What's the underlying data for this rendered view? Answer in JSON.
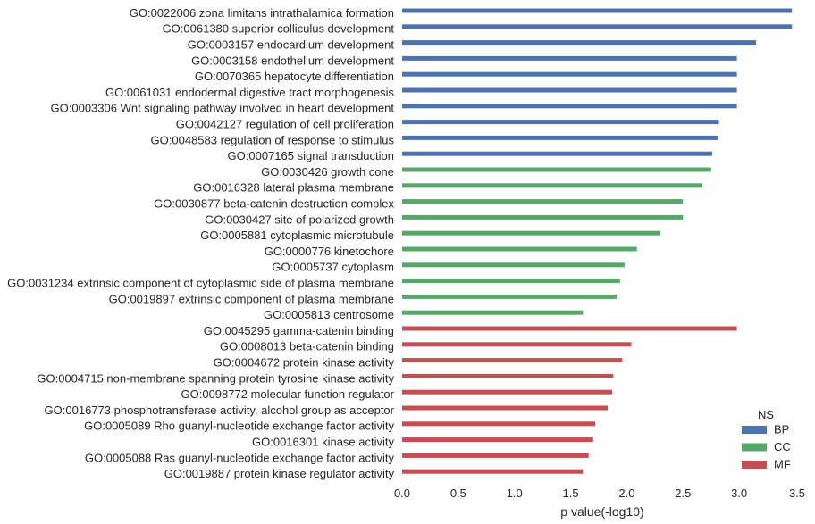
{
  "chart_data": {
    "type": "bar",
    "orientation": "horizontal",
    "title": "",
    "xlabel": "p value(-log10)",
    "ylabel": "",
    "xlim": [
      0,
      3.5
    ],
    "xticks": [
      "0.0",
      "0.5",
      "1.0",
      "1.5",
      "2.0",
      "2.5",
      "3.0",
      "3.5"
    ],
    "grid": false,
    "legend": {
      "title": "NS",
      "placement": "bottom-right",
      "entries": [
        {
          "name": "BP",
          "color": "#4c72b0"
        },
        {
          "name": "CC",
          "color": "#55a868"
        },
        {
          "name": "MF",
          "color": "#c44e52"
        }
      ]
    },
    "categories": [
      "GO:0022006 zona limitans intrathalamica formation",
      "GO:0061380 superior colliculus development",
      "GO:0003157 endocardium development",
      "GO:0003158 endothelium development",
      "GO:0070365 hepatocyte differentiation",
      "GO:0061031 endodermal digestive tract morphogenesis",
      "GO:0003306 Wnt signaling pathway involved in heart development",
      "GO:0042127 regulation of cell proliferation",
      "GO:0048583 regulation of response to stimulus",
      "GO:0007165 signal transduction",
      "GO:0030426 growth cone",
      "GO:0016328 lateral plasma membrane",
      "GO:0030877 beta-catenin destruction complex",
      "GO:0030427 site of polarized growth",
      "GO:0005881 cytoplasmic microtubule",
      "GO:0000776 kinetochore",
      "GO:0005737 cytoplasm",
      "GO:0031234 extrinsic component of cytoplasmic side of plasma membrane",
      "GO:0019897 extrinsic component of plasma membrane",
      "GO:0005813 centrosome",
      "GO:0045295 gamma-catenin binding",
      "GO:0008013 beta-catenin binding",
      "GO:0004672 protein kinase activity",
      "GO:0004715 non-membrane spanning protein tyrosine kinase activity",
      "GO:0098772 molecular function regulator",
      "GO:0016773 phosphotransferase activity, alcohol group as acceptor",
      "GO:0005089 Rho guanyl-nucleotide exchange factor activity",
      "GO:0016301 kinase activity",
      "GO:0005088 Ras guanyl-nucleotide exchange factor activity",
      "GO:0019887 protein kinase regulator activity"
    ],
    "namespaces": [
      "BP",
      "BP",
      "BP",
      "BP",
      "BP",
      "BP",
      "BP",
      "BP",
      "BP",
      "BP",
      "CC",
      "CC",
      "CC",
      "CC",
      "CC",
      "CC",
      "CC",
      "CC",
      "CC",
      "CC",
      "MF",
      "MF",
      "MF",
      "MF",
      "MF",
      "MF",
      "MF",
      "MF",
      "MF",
      "MF"
    ],
    "values": [
      3.47,
      3.47,
      3.15,
      2.98,
      2.98,
      2.98,
      2.98,
      2.82,
      2.81,
      2.76,
      2.75,
      2.67,
      2.5,
      2.5,
      2.3,
      2.09,
      1.98,
      1.94,
      1.91,
      1.61,
      2.98,
      2.04,
      1.96,
      1.88,
      1.87,
      1.83,
      1.72,
      1.7,
      1.66,
      1.61
    ]
  }
}
